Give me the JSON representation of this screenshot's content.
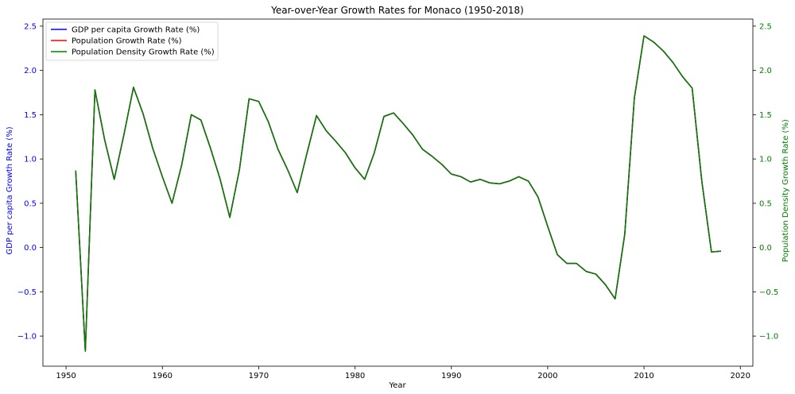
{
  "chart_data": {
    "type": "line",
    "title": "Year-over-Year Growth Rates for Monaco (1950-2018)",
    "xlabel": "Year",
    "ylabel_left": "GDP per capita Growth Rate (%)",
    "ylabel_right": "Population Density Growth Rate (%)",
    "xlim": [
      1947.6,
      2021.3
    ],
    "ylim": [
      -1.34,
      2.58
    ],
    "x_ticks": [
      1950,
      1960,
      1970,
      1980,
      1990,
      2000,
      2010,
      2020
    ],
    "y_ticks": [
      -1.0,
      -0.5,
      0.0,
      0.5,
      1.0,
      1.5,
      2.0,
      2.5
    ],
    "y_tick_labels": [
      "−1.0",
      "−0.5",
      "0.0",
      "0.5",
      "1.0",
      "1.5",
      "2.0",
      "2.5"
    ],
    "legend_position": "top-left",
    "colors": {
      "left_axis": "#0000ff",
      "right_axis": "#008000",
      "frame": "#000000"
    },
    "x": [
      1951,
      1952,
      1953,
      1954,
      1955,
      1956,
      1957,
      1958,
      1959,
      1960,
      1961,
      1962,
      1963,
      1964,
      1965,
      1966,
      1967,
      1968,
      1969,
      1970,
      1971,
      1972,
      1973,
      1974,
      1975,
      1976,
      1977,
      1978,
      1979,
      1980,
      1981,
      1982,
      1983,
      1984,
      1985,
      1986,
      1987,
      1988,
      1989,
      1990,
      1991,
      1992,
      1993,
      1994,
      1995,
      1996,
      1997,
      1998,
      1999,
      2000,
      2001,
      2002,
      2003,
      2004,
      2005,
      2006,
      2007,
      2008,
      2009,
      2010,
      2011,
      2012,
      2013,
      2014,
      2015,
      2016,
      2017,
      2018
    ],
    "series": [
      {
        "name": "GDP per capita Growth Rate (%)",
        "color": "#0000ff",
        "axis": "left",
        "values": [
          0.87,
          -1.17,
          1.78,
          1.22,
          0.77,
          1.27,
          1.81,
          1.51,
          1.12,
          0.8,
          0.5,
          0.93,
          1.5,
          1.44,
          1.12,
          0.77,
          0.34,
          0.88,
          1.68,
          1.65,
          1.42,
          1.11,
          0.88,
          0.62,
          1.06,
          1.49,
          1.32,
          1.2,
          1.07,
          0.9,
          0.77,
          1.07,
          1.48,
          1.52,
          1.4,
          1.27,
          1.11,
          1.03,
          0.94,
          0.83,
          0.8,
          0.74,
          0.77,
          0.73,
          0.72,
          0.75,
          0.8,
          0.75,
          0.57,
          0.24,
          -0.08,
          -0.18,
          -0.18,
          -0.27,
          -0.3,
          -0.42,
          -0.58,
          0.15,
          1.69,
          2.39,
          2.32,
          2.22,
          2.09,
          1.93,
          1.8,
          0.75,
          -0.05,
          -0.04
        ]
      },
      {
        "name": "Population Growth Rate (%)",
        "color": "#ff0000",
        "axis": "left",
        "values": [
          0.87,
          -1.17,
          1.78,
          1.22,
          0.77,
          1.27,
          1.81,
          1.51,
          1.12,
          0.8,
          0.5,
          0.93,
          1.5,
          1.44,
          1.12,
          0.77,
          0.34,
          0.88,
          1.68,
          1.65,
          1.42,
          1.11,
          0.88,
          0.62,
          1.06,
          1.49,
          1.32,
          1.2,
          1.07,
          0.9,
          0.77,
          1.07,
          1.48,
          1.52,
          1.4,
          1.27,
          1.11,
          1.03,
          0.94,
          0.83,
          0.8,
          0.74,
          0.77,
          0.73,
          0.72,
          0.75,
          0.8,
          0.75,
          0.57,
          0.24,
          -0.08,
          -0.18,
          -0.18,
          -0.27,
          -0.3,
          -0.42,
          -0.58,
          0.15,
          1.69,
          2.39,
          2.32,
          2.22,
          2.09,
          1.93,
          1.8,
          0.75,
          -0.05,
          -0.04
        ]
      },
      {
        "name": "Population Density Growth Rate (%)",
        "color": "#008000",
        "axis": "right",
        "values": [
          0.87,
          -1.17,
          1.78,
          1.22,
          0.77,
          1.27,
          1.81,
          1.51,
          1.12,
          0.8,
          0.5,
          0.93,
          1.5,
          1.44,
          1.12,
          0.77,
          0.34,
          0.88,
          1.68,
          1.65,
          1.42,
          1.11,
          0.88,
          0.62,
          1.06,
          1.49,
          1.32,
          1.2,
          1.07,
          0.9,
          0.77,
          1.07,
          1.48,
          1.52,
          1.4,
          1.27,
          1.11,
          1.03,
          0.94,
          0.83,
          0.8,
          0.74,
          0.77,
          0.73,
          0.72,
          0.75,
          0.8,
          0.75,
          0.57,
          0.24,
          -0.08,
          -0.18,
          -0.18,
          -0.27,
          -0.3,
          -0.42,
          -0.58,
          0.15,
          1.69,
          2.39,
          2.32,
          2.22,
          2.09,
          1.93,
          1.8,
          0.75,
          -0.05,
          -0.04
        ]
      }
    ]
  }
}
